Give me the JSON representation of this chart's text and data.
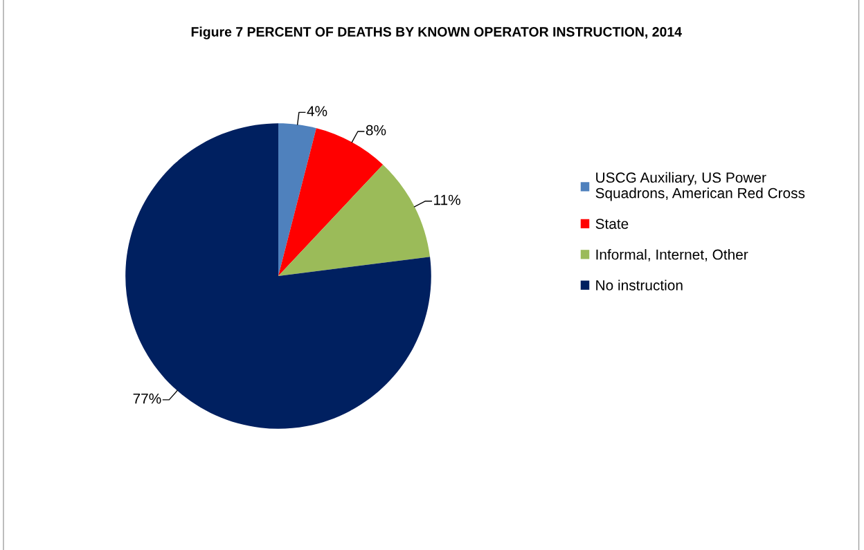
{
  "chart_data": {
    "type": "pie",
    "title": "Figure 7 PERCENT OF DEATHS BY KNOWN OPERATOR INSTRUCTION, 2014",
    "categories": [
      "USCG Auxiliary, US Power Squadrons, American Red Cross",
      "State",
      "Informal, Internet, Other",
      "No instruction"
    ],
    "values": [
      4,
      8,
      11,
      77
    ],
    "colors": [
      "#4f81bd",
      "#ff0000",
      "#9bbb59",
      "#002060"
    ],
    "value_labels": [
      "4%",
      "8%",
      "11%",
      "77%"
    ],
    "legend": "right"
  }
}
